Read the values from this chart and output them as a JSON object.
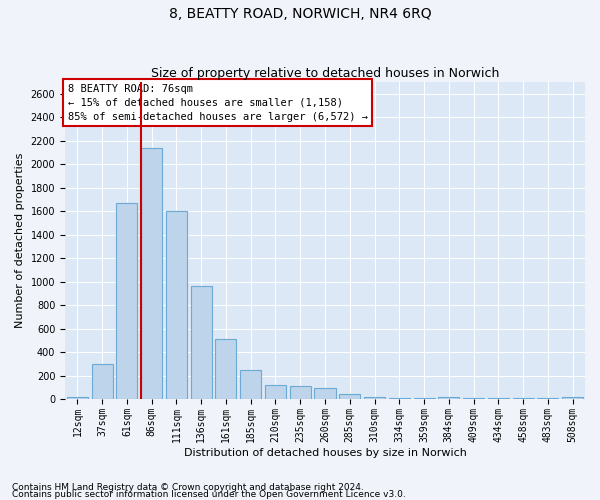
{
  "title": "8, BEATTY ROAD, NORWICH, NR4 6RQ",
  "subtitle": "Size of property relative to detached houses in Norwich",
  "xlabel": "Distribution of detached houses by size in Norwich",
  "ylabel": "Number of detached properties",
  "categories": [
    "12sqm",
    "37sqm",
    "61sqm",
    "86sqm",
    "111sqm",
    "136sqm",
    "161sqm",
    "185sqm",
    "210sqm",
    "235sqm",
    "260sqm",
    "285sqm",
    "310sqm",
    "334sqm",
    "359sqm",
    "384sqm",
    "409sqm",
    "434sqm",
    "458sqm",
    "483sqm",
    "508sqm"
  ],
  "values": [
    20,
    300,
    1670,
    2140,
    1600,
    960,
    510,
    245,
    120,
    110,
    95,
    40,
    18,
    5,
    5,
    20,
    5,
    5,
    5,
    5,
    20
  ],
  "bar_color": "#bdd4ea",
  "bar_edge_color": "#6aaad4",
  "vline_index": 3,
  "vline_color": "#cc0000",
  "annotation_text": "8 BEATTY ROAD: 76sqm\n← 15% of detached houses are smaller (1,158)\n85% of semi-detached houses are larger (6,572) →",
  "annotation_box_color": "#ffffff",
  "annotation_box_edge_color": "#cc0000",
  "footer_line1": "Contains HM Land Registry data © Crown copyright and database right 2024.",
  "footer_line2": "Contains public sector information licensed under the Open Government Licence v3.0.",
  "ylim": [
    0,
    2700
  ],
  "bg_color": "#f0f4fa",
  "plot_bg_color": "#dce8f5",
  "title_fontsize": 10,
  "subtitle_fontsize": 9,
  "tick_fontsize": 7,
  "ylabel_fontsize": 8,
  "xlabel_fontsize": 8,
  "annotation_fontsize": 7.5,
  "footer_fontsize": 6.5
}
